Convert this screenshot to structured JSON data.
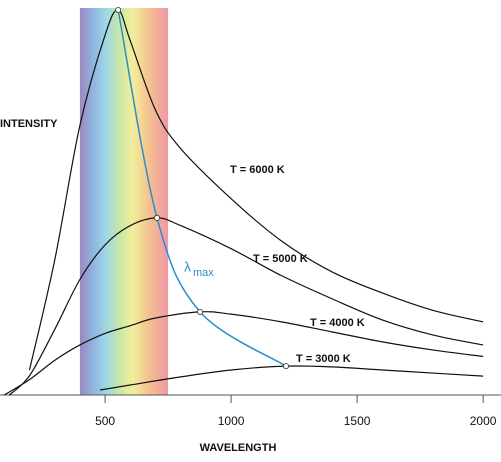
{
  "chart_data": {
    "type": "line",
    "y_label": "INTENSITY",
    "x_label": "WAVELENGTH",
    "xlim": [
      83,
      2071
    ],
    "ylim": [
      0,
      100
    ],
    "xticks": [
      500,
      1000,
      1500,
      2000
    ],
    "spectrum_band": [
      400,
      750
    ],
    "series": [
      {
        "name": "T = 6000 K",
        "color": "#111111",
        "x": [
          200,
          300,
          400,
          500,
          552,
          600,
          700,
          800,
          1000,
          1200,
          1400,
          1600,
          1800,
          2000
        ],
        "values": [
          6.5,
          35,
          70,
          93.5,
          100,
          92,
          74,
          64,
          51,
          40,
          32,
          26.5,
          22,
          19
        ]
      },
      {
        "name": "T = 5000 K",
        "color": "#111111",
        "x": [
          120,
          200,
          300,
          400,
          500,
          600,
          706,
          800,
          1000,
          1200,
          1400,
          1600,
          1800,
          2000
        ],
        "values": [
          0,
          5,
          17,
          30,
          39,
          44,
          46,
          44,
          38,
          31,
          25,
          19.5,
          15.6,
          13
        ]
      },
      {
        "name": "T = 4000 K",
        "color": "#111111",
        "x": [
          100,
          200,
          300,
          400,
          500,
          600,
          700,
          877,
          1000,
          1200,
          1400,
          1600,
          1800,
          2000
        ],
        "values": [
          0,
          4,
          9,
          13,
          16,
          18,
          20,
          21.6,
          21,
          19,
          16.4,
          13.8,
          11.7,
          10
        ]
      },
      {
        "name": "T = 3000 K",
        "color": "#111111",
        "x": [
          480,
          600,
          800,
          1000,
          1218,
          1400,
          1600,
          1800,
          2000
        ],
        "values": [
          1.3,
          2.6,
          4.7,
          6.5,
          7.5,
          7.3,
          6.5,
          5.7,
          4.9
        ]
      }
    ],
    "lambda_max": {
      "symbol": "λ",
      "subscript": "max",
      "color": "#2a8fc8",
      "x": [
        552,
        706,
        877,
        1218
      ],
      "values": [
        100,
        46,
        21.6,
        7.5
      ]
    }
  }
}
